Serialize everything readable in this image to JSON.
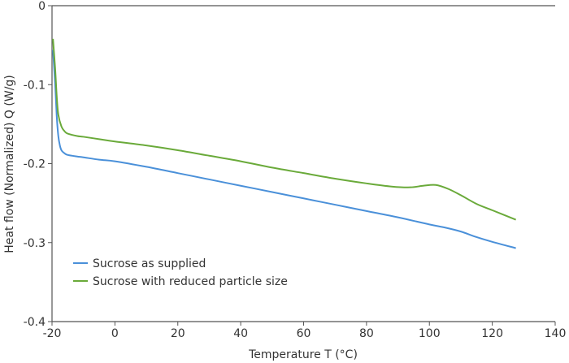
{
  "chart_data": {
    "type": "line",
    "title": "",
    "xlabel": "Temperature T (°C)",
    "ylabel": "Heat flow (Normalized) Q (W/g)",
    "xlim": [
      -20,
      140
    ],
    "ylim": [
      -0.4,
      0
    ],
    "xticks": [
      -20,
      0,
      20,
      40,
      60,
      80,
      100,
      120,
      140
    ],
    "yticks": [
      0,
      -0.1,
      -0.2,
      -0.3,
      -0.4
    ],
    "ytick_labels": [
      "0",
      "-0.1",
      "-0.2",
      "-0.3",
      "-0.4"
    ],
    "grid": false,
    "legend_placement": "bottom-left",
    "series": [
      {
        "name": "Sucrose as supplied",
        "color": "#4a90d9",
        "x": [
          -19.7,
          -19,
          -18.5,
          -18,
          -17.5,
          -17,
          -16,
          -15,
          -12,
          -10,
          -5,
          0,
          10,
          20,
          30,
          40,
          50,
          60,
          70,
          80,
          90,
          100,
          105,
          110,
          115,
          120,
          127.5
        ],
        "y": [
          -0.056,
          -0.1,
          -0.14,
          -0.165,
          -0.177,
          -0.183,
          -0.187,
          -0.189,
          -0.191,
          -0.192,
          -0.195,
          -0.197,
          -0.204,
          -0.212,
          -0.22,
          -0.228,
          -0.236,
          -0.244,
          -0.252,
          -0.26,
          -0.268,
          -0.277,
          -0.281,
          -0.286,
          -0.293,
          -0.299,
          -0.307
        ]
      },
      {
        "name": "Sucrose with reduced particle size",
        "color": "#6aaa3a",
        "x": [
          -19.7,
          -19,
          -18.5,
          -18,
          -17,
          -16,
          -15,
          -12,
          -10,
          -5,
          0,
          10,
          20,
          30,
          40,
          50,
          60,
          70,
          80,
          88,
          94,
          98,
          102,
          106,
          110,
          115,
          120,
          127.5
        ],
        "y": [
          -0.042,
          -0.08,
          -0.115,
          -0.138,
          -0.153,
          -0.159,
          -0.162,
          -0.165,
          -0.166,
          -0.169,
          -0.172,
          -0.177,
          -0.183,
          -0.19,
          -0.197,
          -0.205,
          -0.212,
          -0.219,
          -0.225,
          -0.229,
          -0.23,
          -0.228,
          -0.227,
          -0.232,
          -0.24,
          -0.251,
          -0.259,
          -0.271
        ]
      }
    ]
  }
}
